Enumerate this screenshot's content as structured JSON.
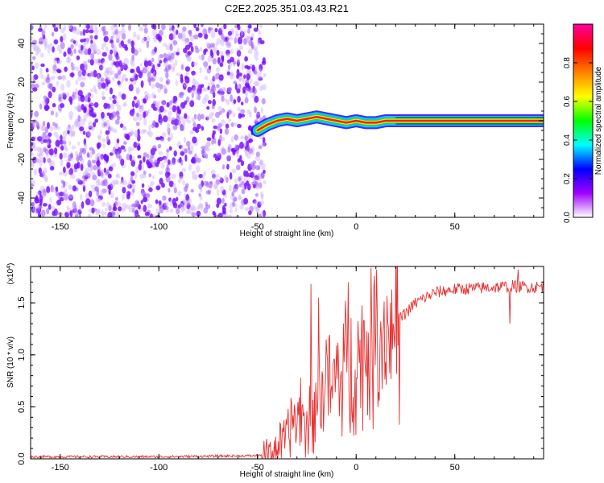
{
  "title": "C2E2.2025.351.03.43.R21",
  "chart_data": [
    {
      "type": "heatmap",
      "panel": "top",
      "xlabel": "Height of straight line (km)",
      "ylabel": "Frequency (Hz)",
      "xlim": [
        -165,
        95
      ],
      "ylim": [
        -50,
        50
      ],
      "xticks": [
        -150,
        -100,
        -50,
        0,
        50
      ],
      "yticks": [
        -40,
        -20,
        0,
        20,
        40
      ],
      "noise_region_x": [
        -165,
        -48
      ],
      "ridge": {
        "description_values": "frequency center of the dominant spectral line vs height",
        "x": [
          -50,
          -45,
          -40,
          -35,
          -30,
          -25,
          -20,
          -15,
          -10,
          -5,
          0,
          5,
          10,
          15,
          20,
          95
        ],
        "y": [
          -5,
          -2,
          0,
          1,
          0,
          1,
          2,
          1,
          0,
          -1,
          0,
          -1,
          -1,
          0,
          0,
          0
        ],
        "peak_amplitude": 0.95
      },
      "colorbar": {
        "label": "Normalized spectral amplitude",
        "range": [
          0,
          1
        ],
        "ticks": [
          0.0,
          0.2,
          0.4,
          0.6,
          0.8
        ],
        "tick_labels": [
          "0.0",
          "0.2",
          "0.4",
          "0.6",
          "0.8"
        ],
        "colormap": [
          "#ffffff",
          "#a000ff",
          "#0000ff",
          "#00ffff",
          "#00ff00",
          "#ffff00",
          "#ff8000",
          "#ff0000",
          "#ff00a0"
        ]
      }
    },
    {
      "type": "line",
      "panel": "bottom",
      "xlabel": "Height of straight line (km)",
      "ylabel": "SNR (10 * v/v)",
      "multiplier_label": "(x10",
      "multiplier_exp": "4",
      "multiplier_close": ")",
      "xlim": [
        -165,
        95
      ],
      "ylim": [
        0,
        1.85
      ],
      "xticks": [
        -150,
        -100,
        -50,
        0,
        50
      ],
      "yticks": [
        0.0,
        0.5,
        1.0,
        1.5
      ],
      "ytick_labels": [
        "0.0",
        "0.5",
        "1.0",
        "1.5"
      ],
      "color": "#e83030",
      "series": [
        {
          "x": [
            -165,
            -100,
            -50,
            -45,
            -40,
            -35,
            -32,
            -30,
            -28,
            -26,
            -24,
            -22,
            -20,
            -18,
            -15,
            -12,
            -10,
            -8,
            -6,
            -4,
            -2,
            0,
            2,
            5,
            8,
            10,
            12,
            15,
            18,
            20,
            25,
            30,
            35,
            40,
            50,
            60,
            70,
            80,
            90,
            95
          ],
          "y": [
            0.02,
            0.02,
            0.03,
            0.05,
            0.12,
            0.2,
            0.4,
            0.35,
            0.55,
            0.25,
            0.5,
            0.3,
            0.7,
            0.5,
            0.9,
            0.6,
            0.85,
            0.7,
            1.0,
            0.8,
            0.95,
            0.9,
            0.95,
            1.1,
            1.05,
            1.2,
            1.15,
            1.25,
            1.2,
            1.3,
            1.4,
            1.5,
            1.55,
            1.6,
            1.63,
            1.64,
            1.65,
            1.66,
            1.65,
            1.66
          ],
          "spikes": [
            {
              "x": -23,
              "y": 1.68
            },
            {
              "x": -19,
              "y": 1.55
            },
            {
              "x": -4,
              "y": 1.7
            },
            {
              "x": -3,
              "y": 0.25
            },
            {
              "x": 82,
              "y": 1.82
            },
            {
              "x": 78,
              "y": 1.3
            }
          ]
        }
      ]
    }
  ]
}
